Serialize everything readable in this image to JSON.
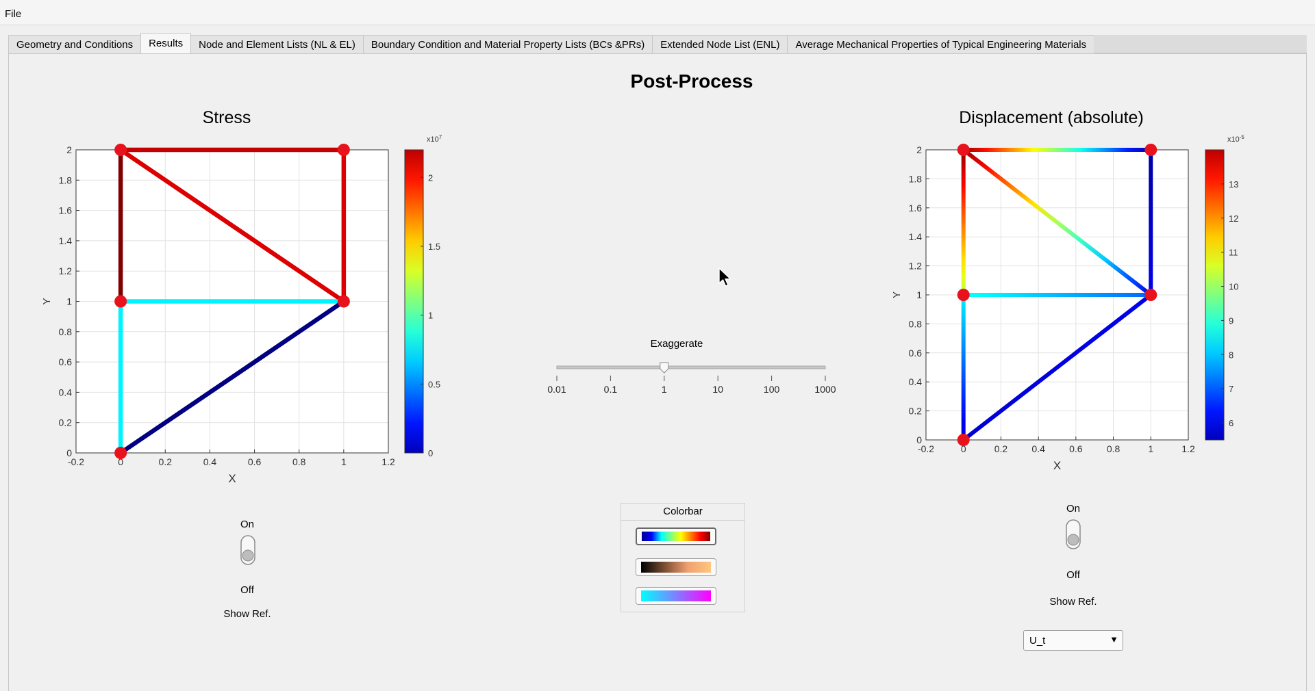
{
  "menu": {
    "file": "File"
  },
  "tabs": [
    {
      "label": "Geometry and Conditions",
      "active": false
    },
    {
      "label": "Results",
      "active": true
    },
    {
      "label": "Node and Element Lists (NL & EL)",
      "active": false
    },
    {
      "label": "Boundary Condition and Material Property Lists (BCs &PRs)",
      "active": false
    },
    {
      "label": "Extended Node List (ENL)",
      "active": false
    },
    {
      "label": "Average Mechanical Properties of Typical Engineering Materials",
      "active": false
    }
  ],
  "page_title": "Post-Process",
  "stress_panel": {
    "title": "Stress",
    "toggle_on": "On",
    "toggle_off": "Off",
    "show_ref": "Show Ref."
  },
  "displacement_panel": {
    "title": "Displacement (absolute)",
    "toggle_on": "On",
    "toggle_off": "Off",
    "show_ref": "Show Ref.",
    "dropdown_value": "U_t"
  },
  "exaggerate": {
    "label": "Exaggerate",
    "ticks": [
      "0.01",
      "0.1",
      "1",
      "10",
      "100",
      "1000"
    ],
    "value": "1"
  },
  "colorbar_panel": {
    "title": "Colorbar",
    "options": [
      "jet",
      "copper",
      "cool"
    ]
  },
  "colors": {
    "node": "#e8121c",
    "background": "#f0f0f0"
  },
  "chart_data": [
    {
      "type": "line",
      "title": "Stress",
      "xlabel": "X",
      "ylabel": "Y",
      "xlim": [
        -0.2,
        1.2
      ],
      "ylim": [
        0,
        2
      ],
      "xticks": [
        "-0.2",
        "0",
        "0.2",
        "0.4",
        "0.6",
        "0.8",
        "1",
        "1.2"
      ],
      "yticks": [
        "0",
        "0.2",
        "0.4",
        "0.6",
        "0.8",
        "1",
        "1.2",
        "1.4",
        "1.6",
        "1.8",
        "2"
      ],
      "grid": true,
      "nodes": [
        [
          0,
          0
        ],
        [
          1,
          1
        ],
        [
          0,
          1
        ],
        [
          0,
          2
        ],
        [
          1,
          2
        ]
      ],
      "elements": [
        {
          "from": [
            0,
            2
          ],
          "to": [
            1,
            2
          ],
          "value": 2.05
        },
        {
          "from": [
            0,
            2
          ],
          "to": [
            1,
            1
          ],
          "value": 2.0
        },
        {
          "from": [
            1,
            2
          ],
          "to": [
            1,
            1
          ],
          "value": 2.0
        },
        {
          "from": [
            0,
            2
          ],
          "to": [
            0,
            1
          ],
          "value": 2.2
        },
        {
          "from": [
            0,
            1
          ],
          "to": [
            1,
            1
          ],
          "value": 0.8
        },
        {
          "from": [
            0,
            1
          ],
          "to": [
            0,
            0
          ],
          "value": 0.8
        },
        {
          "from": [
            0,
            0
          ],
          "to": [
            1,
            1
          ],
          "value": 0.0
        }
      ],
      "colorbar": {
        "colormap": "jet",
        "multiplier": "x10",
        "exponent": "7",
        "range": [
          0,
          2.2
        ],
        "ticks": [
          "0",
          "0.5",
          "1",
          "1.5",
          "2"
        ]
      }
    },
    {
      "type": "line",
      "title": "Displacement (absolute)",
      "xlabel": "X",
      "ylabel": "Y",
      "xlim": [
        -0.2,
        1.2
      ],
      "ylim": [
        0,
        2
      ],
      "xticks": [
        "-0.2",
        "0",
        "0.2",
        "0.4",
        "0.6",
        "0.8",
        "1",
        "1.2"
      ],
      "yticks": [
        "0",
        "0.2",
        "0.4",
        "0.6",
        "0.8",
        "1",
        "1.2",
        "1.4",
        "1.6",
        "1.8",
        "2"
      ],
      "grid": true,
      "nodes": [
        [
          0,
          0
        ],
        [
          1,
          1
        ],
        [
          0,
          1
        ],
        [
          0,
          2
        ],
        [
          1,
          2
        ]
      ],
      "elements": [
        {
          "from": [
            0,
            2
          ],
          "to": [
            1,
            2
          ],
          "value_start": 13.8,
          "value_end": 5.8
        },
        {
          "from": [
            0,
            2
          ],
          "to": [
            1,
            1
          ],
          "value_start": 13.8,
          "value_end": 6.4
        },
        {
          "from": [
            1,
            2
          ],
          "to": [
            1,
            1
          ],
          "value_start": 5.8,
          "value_end": 6.4
        },
        {
          "from": [
            0,
            2
          ],
          "to": [
            0,
            1
          ],
          "value_start": 13.8,
          "value_end": 10.2
        },
        {
          "from": [
            0,
            1
          ],
          "to": [
            1,
            1
          ],
          "value_start": 8.8,
          "value_end": 7.4
        },
        {
          "from": [
            0,
            1
          ],
          "to": [
            0,
            0
          ],
          "value_start": 8.6,
          "value_end": 6.2
        },
        {
          "from": [
            0,
            0
          ],
          "to": [
            1,
            1
          ],
          "value_start": 6.2,
          "value_end": 6.4
        }
      ],
      "colorbar": {
        "colormap": "jet",
        "multiplier": "x10",
        "exponent": "-5",
        "range": [
          5.5,
          14
        ],
        "ticks": [
          "6",
          "7",
          "8",
          "9",
          "10",
          "11",
          "12",
          "13"
        ]
      }
    }
  ]
}
